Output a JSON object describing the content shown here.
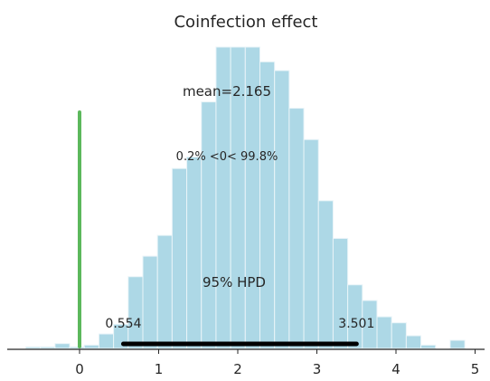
{
  "chart_data": {
    "type": "bar",
    "title": "Coinfection effect",
    "xlabel": "",
    "ylabel": "",
    "xlim": [
      -0.68,
      5.15
    ],
    "ylim": [
      0,
      1
    ],
    "grid": false,
    "legend": "none",
    "bin_width": 0.185,
    "bins": [
      {
        "x0": -0.68,
        "height": 0.005
      },
      {
        "x0": -0.495,
        "height": 0.005
      },
      {
        "x0": -0.31,
        "height": 0.016
      },
      {
        "x0": -0.125,
        "height": 0.005
      },
      {
        "x0": 0.06,
        "height": 0.011
      },
      {
        "x0": 0.245,
        "height": 0.048
      },
      {
        "x0": 0.43,
        "height": 0.08
      },
      {
        "x0": 0.615,
        "height": 0.238
      },
      {
        "x0": 0.8,
        "height": 0.306
      },
      {
        "x0": 0.985,
        "height": 0.375
      },
      {
        "x0": 1.17,
        "height": 0.597
      },
      {
        "x0": 1.355,
        "height": 0.635
      },
      {
        "x0": 1.54,
        "height": 0.818
      },
      {
        "x0": 1.725,
        "height": 1.0
      },
      {
        "x0": 1.91,
        "height": 1.0
      },
      {
        "x0": 2.095,
        "height": 1.0
      },
      {
        "x0": 2.28,
        "height": 0.951
      },
      {
        "x0": 2.465,
        "height": 0.922
      },
      {
        "x0": 2.65,
        "height": 0.797
      },
      {
        "x0": 2.835,
        "height": 0.693
      },
      {
        "x0": 3.02,
        "height": 0.49
      },
      {
        "x0": 3.205,
        "height": 0.365
      },
      {
        "x0": 3.39,
        "height": 0.211
      },
      {
        "x0": 3.575,
        "height": 0.159
      },
      {
        "x0": 3.76,
        "height": 0.105
      },
      {
        "x0": 3.945,
        "height": 0.085
      },
      {
        "x0": 4.13,
        "height": 0.042
      },
      {
        "x0": 4.315,
        "height": 0.011
      },
      {
        "x0": 4.5,
        "height": 0.0
      },
      {
        "x0": 4.685,
        "height": 0.027
      }
    ],
    "xticks": [
      0,
      1,
      2,
      3,
      4,
      5
    ],
    "reference_line": {
      "x": 0,
      "ymax": 1.0,
      "color": "#5cb85c"
    },
    "mean_label": "mean=2.165",
    "ref_label": "0.2% <0< 99.8%",
    "hpd": {
      "label": "95% HPD",
      "low": 0.554,
      "high": 3.501,
      "low_label": "0.554",
      "high_label": "3.501"
    },
    "colors": {
      "bars": "#add8e6",
      "bar_edge": "#e9f4f8",
      "hpd_line": "#000000",
      "axis": "#262626"
    }
  }
}
